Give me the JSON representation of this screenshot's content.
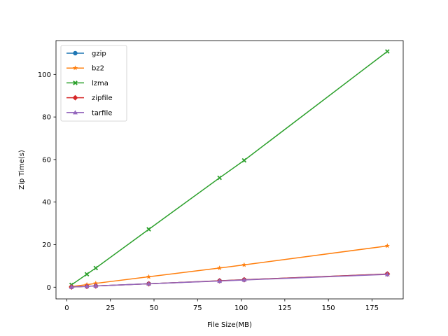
{
  "chart_data": {
    "type": "line",
    "title": "",
    "xlabel": "File Size(MB)",
    "ylabel": "Zip Time(s)",
    "xlim": [
      -6.2,
      192.9
    ],
    "ylim": [
      -5.5,
      115.9
    ],
    "xticks": [
      0,
      25,
      50,
      75,
      100,
      125,
      150,
      175
    ],
    "yticks": [
      0,
      20,
      40,
      60,
      80,
      100
    ],
    "x": [
      2.7,
      11.5,
      16.6,
      47.0,
      87.6,
      101.7,
      183.8
    ],
    "grid": false,
    "legend_position": "upper-left",
    "series": [
      {
        "name": "gzip",
        "color": "#1f77b4",
        "marker": "circle",
        "values": [
          0.1,
          0.4,
          0.6,
          1.6,
          3.0,
          3.5,
          6.2
        ]
      },
      {
        "name": "bz2",
        "color": "#ff7f0e",
        "marker": "star",
        "values": [
          0.3,
          1.2,
          1.8,
          4.9,
          9.0,
          10.5,
          19.4
        ]
      },
      {
        "name": "lzma",
        "color": "#2ca02c",
        "marker": "x-filled",
        "values": [
          1.1,
          6.1,
          9.0,
          27.2,
          51.4,
          59.6,
          110.8
        ]
      },
      {
        "name": "zipfile",
        "color": "#d62728",
        "marker": "diamond",
        "values": [
          0.1,
          0.4,
          0.6,
          1.6,
          3.0,
          3.5,
          6.2
        ]
      },
      {
        "name": "tarfile",
        "color": "#9467bd",
        "marker": "triangle",
        "values": [
          0.1,
          0.4,
          0.6,
          1.6,
          2.9,
          3.4,
          6.0
        ]
      }
    ]
  }
}
